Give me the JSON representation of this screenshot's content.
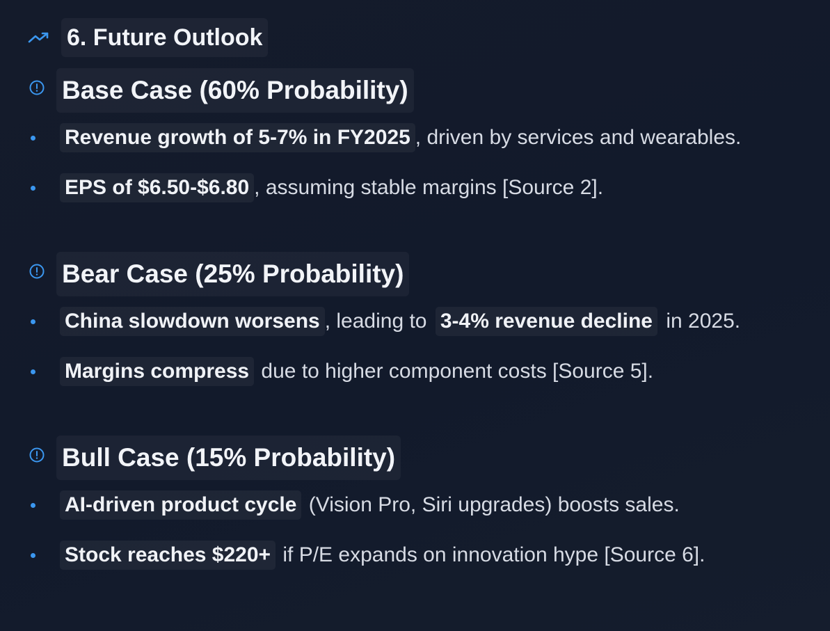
{
  "section": {
    "icon": "trending-up-icon",
    "title": "6. Future Outlook"
  },
  "cases": [
    {
      "icon": "alert-circle-icon",
      "title": "Base Case (60% Probability)",
      "bullets": [
        {
          "bold": "Revenue growth of 5-7% in FY2025",
          "rest": ", driven by services and wearables."
        },
        {
          "bold": "EPS of $6.50-$6.80",
          "rest": ", assuming stable margins [Source 2]."
        }
      ]
    },
    {
      "icon": "alert-circle-icon",
      "title": "Bear Case (25% Probability)",
      "bullets": [
        {
          "bold": "China slowdown worsens",
          "mid": ", leading to ",
          "bold2": "3-4% revenue decline",
          "rest": " in 2025."
        },
        {
          "bold": "Margins compress",
          "rest": " due to higher component costs [Source 5]."
        }
      ]
    },
    {
      "icon": "alert-circle-icon",
      "title": "Bull Case (15% Probability)",
      "bullets": [
        {
          "bold": "AI-driven product cycle",
          "rest": " (Vision Pro, Siri upgrades) boosts sales."
        },
        {
          "bold": "Stock reaches $220+",
          "rest": " if P/E expands on innovation hype [Source 6]."
        }
      ]
    }
  ],
  "colors": {
    "accent": "#3b97f0",
    "background": "#131a2a",
    "text": "#d7dbe4"
  }
}
